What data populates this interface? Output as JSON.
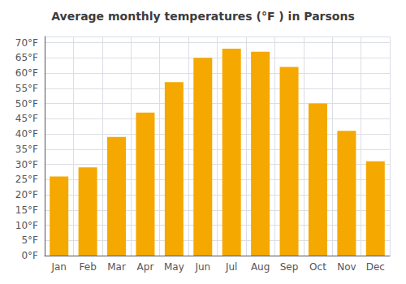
{
  "chart_data": {
    "type": "bar",
    "title": "Average monthly temperatures (°F ) in Parsons",
    "categories": [
      "Jan",
      "Feb",
      "Mar",
      "Apr",
      "May",
      "Jun",
      "Jul",
      "Aug",
      "Sep",
      "Oct",
      "Nov",
      "Dec"
    ],
    "values": [
      26,
      29,
      39,
      47,
      57,
      65,
      68,
      67,
      62,
      50,
      41,
      31
    ],
    "color": "#F5A800",
    "ylim": [
      0,
      72
    ],
    "yticks": [
      {
        "value": 0,
        "label": "0°F"
      },
      {
        "value": 5,
        "label": "5°F"
      },
      {
        "value": 10,
        "label": "10°F"
      },
      {
        "value": 15,
        "label": "15°F"
      },
      {
        "value": 20,
        "label": "20°F"
      },
      {
        "value": 25,
        "label": "25°F"
      },
      {
        "value": 30,
        "label": "30°F"
      },
      {
        "value": 35,
        "label": "35°F"
      },
      {
        "value": 40,
        "label": "40°F"
      },
      {
        "value": 45,
        "label": "45°F"
      },
      {
        "value": 50,
        "label": "50°F"
      },
      {
        "value": 55,
        "label": "55°F"
      },
      {
        "value": 60,
        "label": "60°F"
      },
      {
        "value": 65,
        "label": "65°F"
      },
      {
        "value": 70,
        "label": "70°F"
      }
    ],
    "grid": true
  }
}
